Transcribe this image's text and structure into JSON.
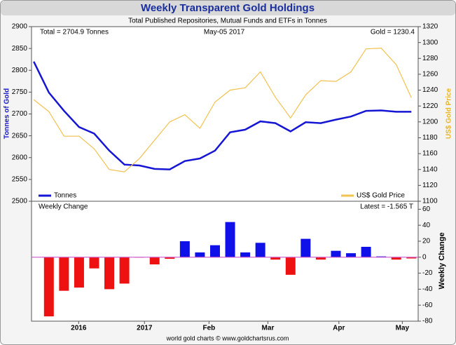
{
  "chart_data": [
    {
      "type": "line",
      "title": "Weekly Transparent Gold Holdings",
      "subtitle": "Total Published Repositories, Mutual Funds and ETFs in Tonnes",
      "annotations": [
        "Total = 2704.9 Tonnes",
        "May-05  2017",
        "Gold = 1230.4"
      ],
      "ylabel": "Tonnes of Gold",
      "y2label": "US$ Gold Price",
      "categories": [
        null,
        null,
        null,
        null,
        null,
        null,
        null,
        null,
        null,
        null,
        null,
        null,
        null,
        null,
        null,
        null,
        null,
        null,
        null,
        null,
        null,
        null,
        null,
        null,
        null,
        null
      ],
      "series": [
        {
          "name": "Tonnes",
          "color": "#1515d4",
          "axis": "y",
          "values": [
            2820,
            2749,
            2707,
            2670,
            2655,
            2616,
            2584,
            2582,
            2574,
            2573,
            2592,
            2598,
            2616,
            2658,
            2664,
            2683,
            2679,
            2660,
            2681,
            2679,
            2687,
            2694,
            2707,
            2708,
            2705,
            2704.9
          ]
        },
        {
          "name": "US$ Gold Price",
          "color": "#f2c14e",
          "axis": "y2",
          "values": [
            1228,
            1213,
            1182,
            1182,
            1166,
            1140,
            1137,
            1154,
            1177,
            1200,
            1209,
            1192,
            1225,
            1240,
            1243,
            1263,
            1231,
            1205,
            1234,
            1252,
            1251,
            1263,
            1292,
            1293,
            1272,
            1230.4
          ]
        }
      ],
      "ylim": [
        2500,
        2900
      ],
      "yticks": [
        2500,
        2550,
        2600,
        2650,
        2700,
        2750,
        2800,
        2850,
        2900
      ],
      "y2lim": [
        1100,
        1320
      ],
      "y2ticks": [
        1100,
        1120,
        1140,
        1160,
        1180,
        1200,
        1220,
        1240,
        1260,
        1280,
        1300,
        1320
      ],
      "legend": [
        "bottom-left",
        "bottom-right"
      ]
    },
    {
      "type": "bar",
      "title": "Weekly Change",
      "annotations": [
        "Latest = -1.565 T"
      ],
      "ylabel": "Weekly Change",
      "categories": [
        null,
        null,
        null,
        null,
        null,
        null,
        null,
        null,
        null,
        null,
        null,
        null,
        null,
        null,
        null,
        null,
        null,
        null,
        null,
        null,
        null,
        null,
        null,
        null,
        null
      ],
      "values": [
        -74,
        -42,
        -38,
        -14,
        -40,
        -33,
        -0.5,
        -9,
        -2,
        20,
        6,
        15,
        44,
        6,
        18,
        -3,
        -22,
        23,
        -3,
        8,
        5,
        13,
        1,
        -3,
        -1.565
      ],
      "positive_color": "#1010e8",
      "negative_color": "#ee1111",
      "zero_line_color": "#cc55cc",
      "ylim": [
        -80,
        70
      ],
      "yticks": [
        -80,
        -60,
        -40,
        -20,
        0,
        20,
        40,
        60
      ],
      "xlim": [
        -0.15,
        25.45
      ],
      "xticks": [
        {
          "value": 2.97,
          "label": "2016"
        },
        {
          "value": 7.33,
          "label": "2017"
        },
        {
          "value": 11.6,
          "label": "Feb"
        },
        {
          "value": 15.5,
          "label": "Mar"
        },
        {
          "value": 20.2,
          "label": "Apr"
        },
        {
          "value": 24.4,
          "label": "May"
        }
      ]
    }
  ],
  "footer": "world gold charts © www.goldchartsrus.com"
}
